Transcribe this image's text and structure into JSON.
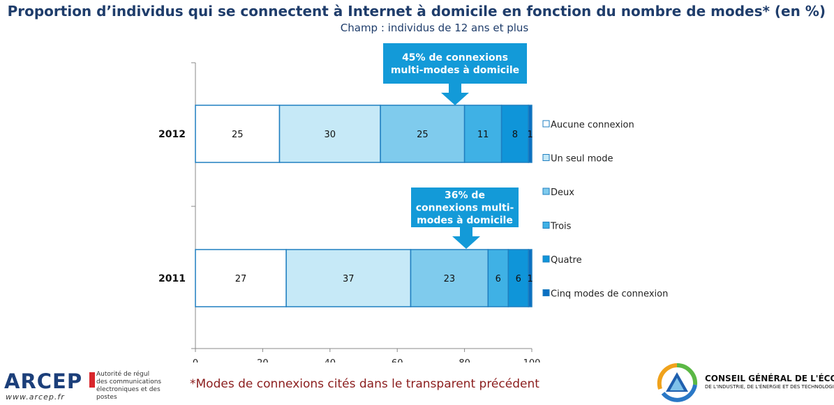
{
  "header": {
    "title": "Proportion d’individus qui se connectent à Internet à domicile en fonction du nombre de modes* (en %)",
    "subtitle": "Champ : individus de 12 ans et plus"
  },
  "chart_data": {
    "type": "bar",
    "orientation": "horizontal",
    "stacked": true,
    "categories": [
      "2012",
      "2011"
    ],
    "series": [
      {
        "name": "Aucune connexion",
        "values": [
          25,
          27
        ],
        "color": "#ffffff"
      },
      {
        "name": "Un seul mode",
        "values": [
          30,
          37
        ],
        "color": "#c6e9f7"
      },
      {
        "name": "Deux",
        "values": [
          25,
          23
        ],
        "color": "#7fcbed"
      },
      {
        "name": "Trois",
        "values": [
          11,
          6
        ],
        "color": "#3fb1e5"
      },
      {
        "name": "Quatre",
        "values": [
          8,
          6
        ],
        "color": "#0f95d9"
      },
      {
        "name": "Cinq modes de connexion",
        "values": [
          1,
          1
        ],
        "color": "#0a6fc2"
      }
    ],
    "xlim": [
      0,
      100
    ],
    "xticks": [
      0,
      20,
      40,
      60,
      80,
      100
    ],
    "legend_position": "right",
    "border_color": "#1f7fc0",
    "annotations": [
      {
        "category": "2012",
        "lines": [
          "45% de connexions",
          "multi-modes à domicile"
        ],
        "color": "#139ad8"
      },
      {
        "category": "2011",
        "lines": [
          "36% de",
          "connexions multi-",
          "modes à domicile"
        ],
        "color": "#139ad8"
      }
    ]
  },
  "footnote": "*Modes de connexions cités dans le transparent précédent",
  "logos": {
    "arcep_name": "ARCEP",
    "arcep_url": "www.arcep.fr",
    "arcep_tagline_1": "Autorité de régul",
    "arcep_tagline_2": "des communications",
    "arcep_tagline_3": "électroniques et des postes",
    "cge_name": "CONSEIL GÉNÉRAL DE L'ÉCONOMIE",
    "cge_sub": "DE L'INDUSTRIE, DE L'ÉNERGIE ET DES TECHNOLOGIES"
  }
}
